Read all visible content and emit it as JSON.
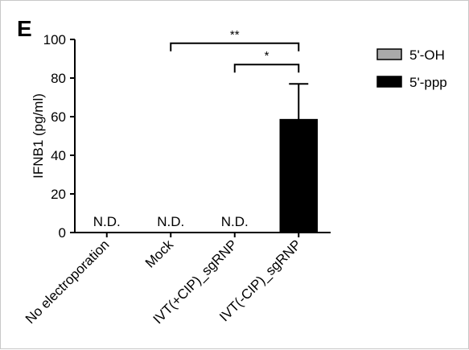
{
  "panel_label": "E",
  "chart_data": {
    "type": "bar",
    "ylabel": "IFNB1 (pg/ml)",
    "ylim": [
      0,
      100
    ],
    "yticks": [
      0,
      20,
      40,
      60,
      80,
      100
    ],
    "categories": [
      "No electroporation",
      "Mock",
      "IVT(+CIP)_sgRNP",
      "IVT(-CIP)_sgRNP"
    ],
    "series": [
      {
        "name": "5'-OH",
        "color": "#aaaaaa",
        "values": [
          null,
          null,
          null,
          null
        ]
      },
      {
        "name": "5'-ppp",
        "color": "#000000",
        "values": [
          null,
          null,
          null,
          58.5
        ],
        "errors": [
          null,
          null,
          null,
          18.5
        ]
      }
    ],
    "bar_labels": [
      "N.D.",
      "N.D.",
      "N.D.",
      ""
    ],
    "significance": [
      {
        "from": 1,
        "to": 3,
        "y": 98,
        "label": "**"
      },
      {
        "from": 2,
        "to": 3,
        "y": 87,
        "label": "*"
      }
    ],
    "legend_position": "top-right"
  }
}
